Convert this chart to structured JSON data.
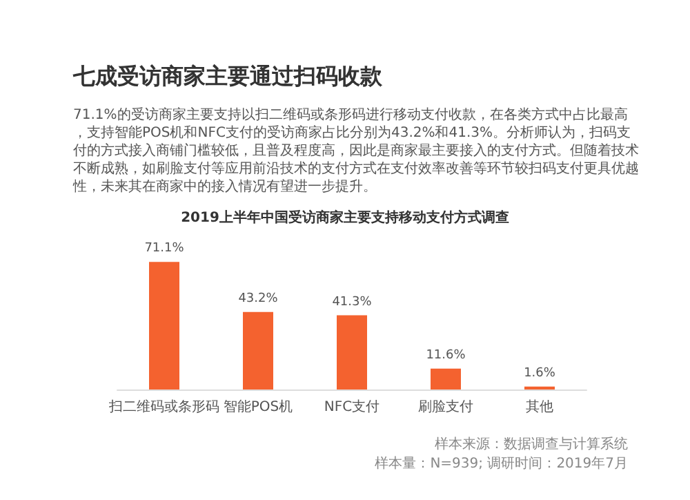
{
  "chart_data": {
    "type": "bar",
    "title": "七成受访商家主要通过扫码收款",
    "subtitle": "71.1%的受访商家主要支持以扫二维码或条形码进行移动支付收款，在各类方式中占比最高，支持智能POS机和NFC支付的受访商家占比分别为43.2%和41.3%。分析师认为，扫码支付的方式接入商铺门槛较低，且普及程度高，因此是商家最主要接入的支付方式。但随着技术不断成熟，如刷脸支付等应用前沿技术的支付方式在支付效率改善等环节较扫码支付更具优越性，未来其在商家中的接入情况有望进一步提升。",
    "xlabel": "2019上半年中国受访商家主要支持移动支付方式调查",
    "categories": [
      "扫二维码或条形码",
      "智能POS机",
      "NFC支付",
      "刷脸支付",
      "其他"
    ],
    "values": [
      71.1,
      43.2,
      41.3,
      11.6,
      1.6
    ],
    "value_labels": [
      "71.1%",
      "43.2%",
      "41.3%",
      "11.6%",
      "1.6%"
    ],
    "color": "#f4622f",
    "grid": false,
    "tick_labels": "x",
    "annotations": [
      "样本来源：数据调查与计算系统",
      "样本量：N=939; 调研时间：2019年7月"
    ]
  }
}
